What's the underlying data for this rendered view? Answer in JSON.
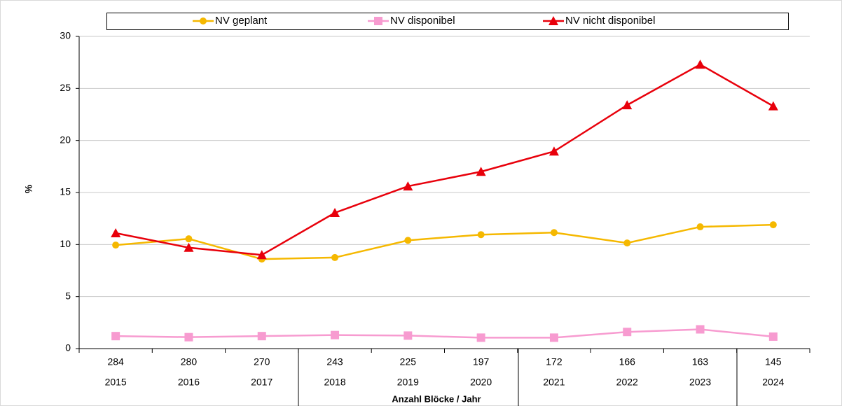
{
  "chart_data": {
    "type": "line",
    "y_label": "%",
    "x_label": "Anzahl Blöcke / Jahr",
    "categories": [
      "2015",
      "2016",
      "2017",
      "2018",
      "2019",
      "2020",
      "2021",
      "2022",
      "2023",
      "2024"
    ],
    "block_counts": [
      284,
      280,
      270,
      243,
      225,
      197,
      172,
      166,
      163,
      145
    ],
    "series": [
      {
        "name": "NV geplant",
        "color": "#f5b800",
        "marker": "circle",
        "values": [
          9.95,
          10.55,
          8.6,
          8.75,
          10.4,
          10.95,
          11.15,
          10.15,
          11.7,
          11.9
        ]
      },
      {
        "name": "NV disponibel",
        "color": "#f79bd0",
        "marker": "square",
        "values": [
          1.2,
          1.1,
          1.2,
          1.3,
          1.25,
          1.05,
          1.05,
          1.6,
          1.85,
          1.15
        ]
      },
      {
        "name": "NV nicht disponibel",
        "color": "#e8000b",
        "marker": "triangle",
        "values": [
          11.1,
          9.7,
          9.0,
          13.05,
          15.6,
          17.0,
          18.95,
          23.4,
          27.3,
          23.3
        ]
      }
    ],
    "ylim": [
      0,
      30
    ],
    "yticks": [
      0,
      5,
      10,
      15,
      20,
      25,
      30
    ],
    "grid": true,
    "legend": "top"
  }
}
